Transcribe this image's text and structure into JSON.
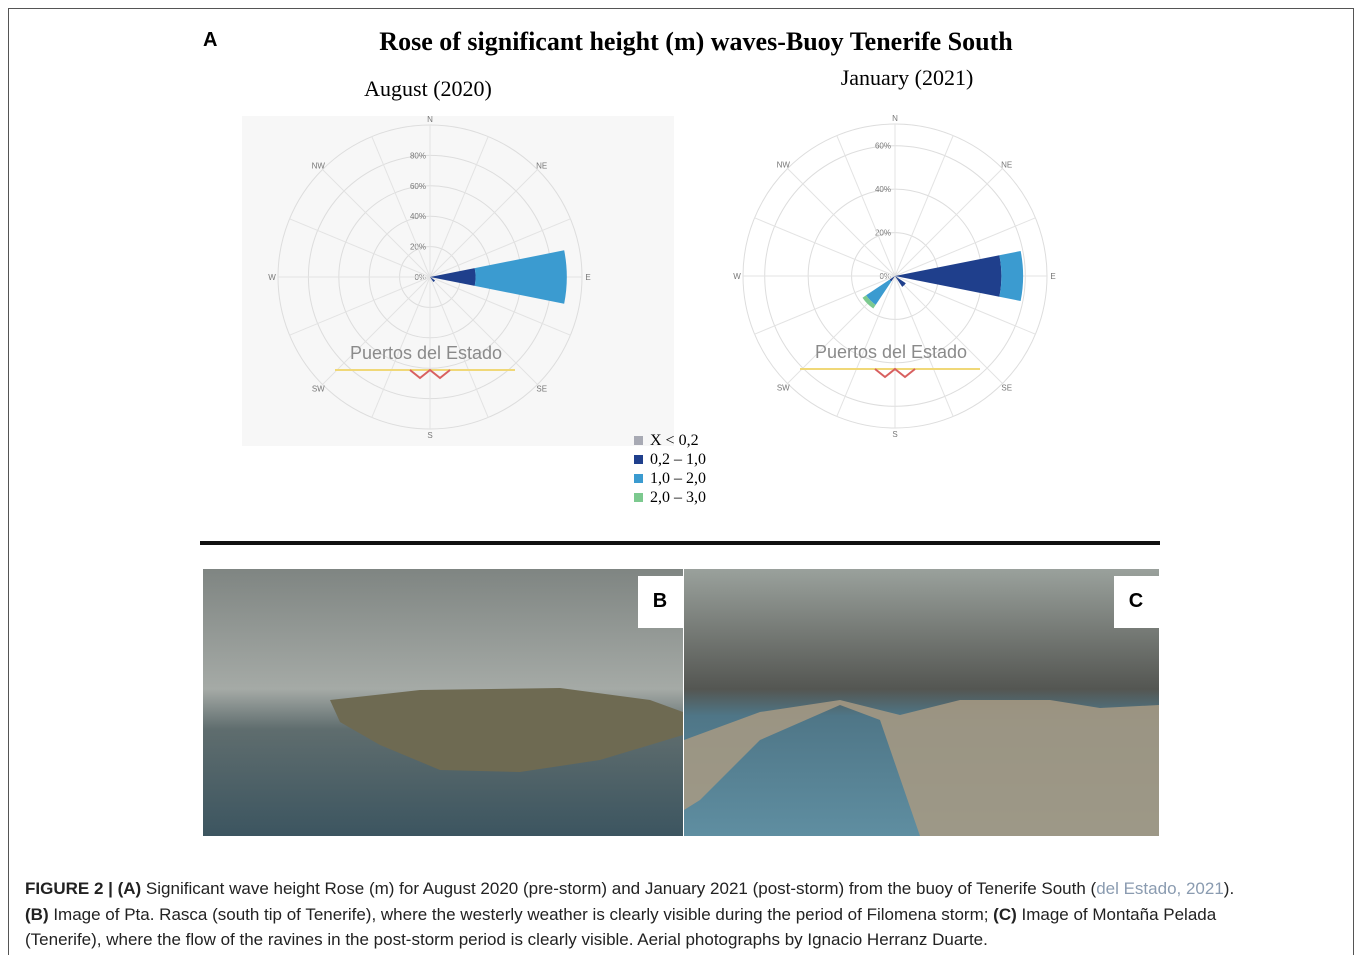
{
  "panel_a": {
    "label": "A",
    "title": "Rose of significant height (m) waves-Buoy Tenerife South",
    "legend": [
      {
        "name": "X < 0,2",
        "color": "#a8aab4"
      },
      {
        "name": "0,2 – 1,0",
        "color": "#1f3f8c"
      },
      {
        "name": "1,0 – 2,0",
        "color": "#3b9bd0"
      },
      {
        "name": "2,0 – 3,0",
        "color": "#7cc98f"
      }
    ],
    "roses": [
      {
        "type": "rose",
        "title": "August (2020)",
        "watermark": "Puertos del Estado",
        "directions": [
          "N",
          null,
          "NE",
          null,
          "E",
          null,
          "SE",
          null,
          "S",
          null,
          "SW",
          null,
          "W",
          null,
          "NW",
          null
        ],
        "rlim": [
          0,
          100
        ],
        "rticks": [
          {
            "value": 0,
            "label": "0%"
          },
          {
            "value": 20,
            "label": "20%"
          },
          {
            "value": 40,
            "label": "40%"
          },
          {
            "value": 60,
            "label": "60%"
          },
          {
            "value": 80,
            "label": "80%"
          }
        ],
        "bins": [
          [
            0,
            0,
            0,
            0,
            0,
            0,
            0,
            0,
            0,
            0,
            0,
            0,
            0,
            0,
            0,
            0
          ],
          [
            0,
            0,
            0,
            0,
            30,
            0,
            4,
            0,
            0,
            0,
            0,
            0,
            0,
            0,
            0,
            0
          ],
          [
            0,
            0,
            0,
            0,
            60,
            0,
            0,
            0,
            0,
            0,
            0,
            0,
            0,
            0,
            0,
            0
          ],
          [
            0,
            0,
            0,
            0,
            0,
            0,
            0,
            0,
            0,
            0,
            0,
            0,
            0,
            0,
            0,
            0
          ]
        ]
      },
      {
        "type": "rose",
        "title": "January (2021)",
        "watermark": "Puertos del Estado",
        "directions": [
          "N",
          null,
          "NE",
          null,
          "E",
          null,
          "SE",
          null,
          "S",
          null,
          "SW",
          null,
          "W",
          null,
          "NW",
          null
        ],
        "rlim": [
          0,
          70
        ],
        "rticks": [
          {
            "value": 0,
            "label": "0%"
          },
          {
            "value": 20,
            "label": "20%"
          },
          {
            "value": 40,
            "label": "40%"
          },
          {
            "value": 60,
            "label": "60%"
          }
        ],
        "bins": [
          [
            0,
            0,
            0,
            0,
            0,
            0,
            0,
            0,
            0,
            0,
            0,
            0,
            0,
            0,
            0,
            0
          ],
          [
            0,
            0,
            0,
            0,
            49,
            0,
            6,
            0,
            0,
            0,
            3,
            0,
            0,
            0,
            0,
            0
          ],
          [
            0,
            0,
            0,
            0,
            10,
            0,
            0,
            0,
            0,
            0,
            13,
            0,
            0,
            0,
            0,
            0
          ],
          [
            0,
            0,
            0,
            0,
            0,
            0,
            0,
            0,
            0,
            0,
            2,
            0,
            0,
            0,
            0,
            0
          ]
        ]
      }
    ]
  },
  "panel_b": {
    "label": "B"
  },
  "panel_c": {
    "label": "C"
  },
  "caption": [
    [
      {
        "text": "FIGURE 2 | (A)",
        "bold": true
      },
      {
        "text": " Significant wave height Rose (m) for August 2020 (pre-storm) and January 2021 (post-storm) from the buoy of Tenerife South ("
      },
      {
        "text": "del Estado, 2021",
        "link": true
      },
      {
        "text": ")."
      }
    ],
    [
      {
        "text": "(B)",
        "bold": true
      },
      {
        "text": " Image of Pta. Rasca (south tip of Tenerife), where the westerly weather is clearly visible during the period of Filomena storm; "
      },
      {
        "text": "(C)",
        "bold": true
      },
      {
        "text": " Image of Montaña Pelada"
      }
    ],
    [
      {
        "text": "(Tenerife), where the flow of the ravines in the post-storm period is clearly visible. Aerial photographs by Ignacio Herranz Duarte."
      }
    ]
  ]
}
